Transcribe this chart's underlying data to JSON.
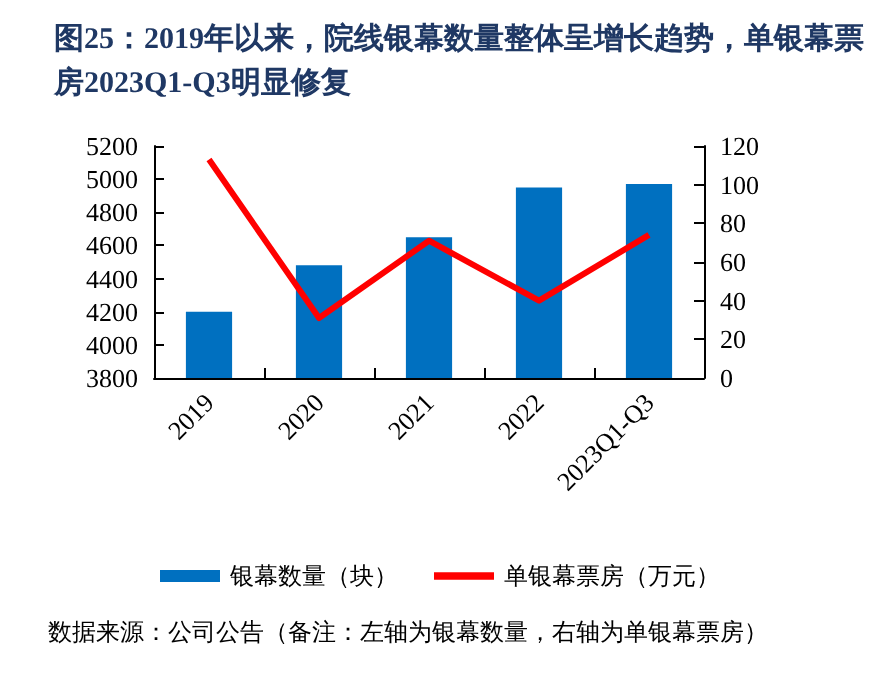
{
  "chart_data": {
    "type": "bar",
    "title": "图25：2019年以来，院线银幕数量整体呈增长趋势，单银幕票房2023Q1-Q3明显修复",
    "categories": [
      "2019",
      "2020",
      "2021",
      "2022",
      "2023Q1-Q3"
    ],
    "series": [
      {
        "name": "银幕数量（块）",
        "color": "#0070c0",
        "values": [
          4200,
          4480,
          4650,
          4950,
          4970
        ]
      },
      {
        "name": "单银幕票房（万元）",
        "type": "line",
        "axis": "y2",
        "color": "#ff0000",
        "marker": "none",
        "values": [
          113,
          31,
          71,
          40,
          74
        ]
      }
    ],
    "ylim": [
      3800,
      5200
    ],
    "yticks": [
      3800,
      4000,
      4200,
      4400,
      4600,
      4800,
      5000,
      5200
    ],
    "y2lim": [
      0,
      120
    ],
    "y2ticks": [
      0,
      20,
      40,
      60,
      80,
      100,
      120
    ],
    "legend": "bottom",
    "grid": false,
    "annotations": [
      "数据来源：公司公告（备注：左轴为银幕数量，右轴为单银幕票房）"
    ]
  }
}
